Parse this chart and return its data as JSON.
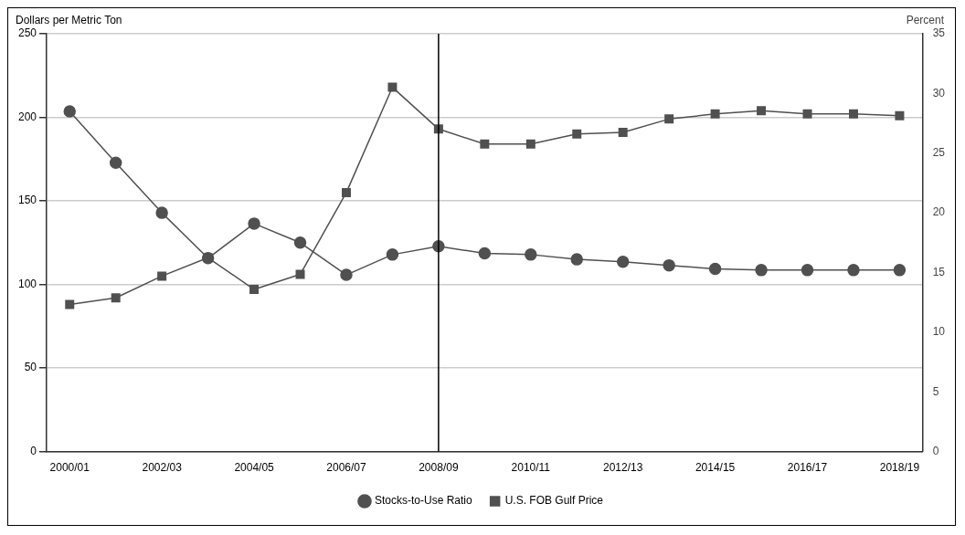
{
  "chart_data": {
    "type": "line",
    "ylabel": "Dollars per Metric Ton",
    "y2label": "Percent",
    "categories": [
      "2000/01",
      null,
      "2002/03",
      null,
      "2004/05",
      null,
      "2006/07",
      null,
      "2008/09",
      null,
      "2010/11",
      null,
      "2012/13",
      null,
      "2014/15",
      null,
      "2016/17",
      null,
      "2018/19"
    ],
    "series": [
      {
        "name": "U.S. FOB Gulf Price",
        "color": "#505050",
        "marker": "square",
        "values": [
          88,
          92,
          105,
          116,
          97,
          106,
          155,
          218,
          193,
          184,
          184,
          190,
          191,
          199,
          202,
          204,
          202,
          202,
          201
        ]
      },
      {
        "name": "Stocks-to-Use Ratio",
        "color": "#505050",
        "marker": "circle",
        "axis": "y2",
        "values": [
          28.5,
          24.2,
          20.0,
          16.2,
          19.1,
          17.5,
          14.8,
          16.5,
          17.2,
          16.6,
          16.5,
          16.1,
          15.9,
          15.6,
          15.3,
          15.2,
          15.2,
          15.2,
          15.2
        ]
      }
    ],
    "ylim": [
      0,
      250
    ],
    "yticks": [
      0,
      50,
      100,
      150,
      200,
      250
    ],
    "y2lim": [
      0,
      35
    ],
    "y2ticks": [
      0,
      5,
      10,
      15,
      20,
      25,
      30,
      35
    ],
    "ref_lines": [
      {
        "axis": "x",
        "value": "2008/09",
        "color": "#000000"
      }
    ],
    "grid": "y",
    "legend": "bottom"
  }
}
